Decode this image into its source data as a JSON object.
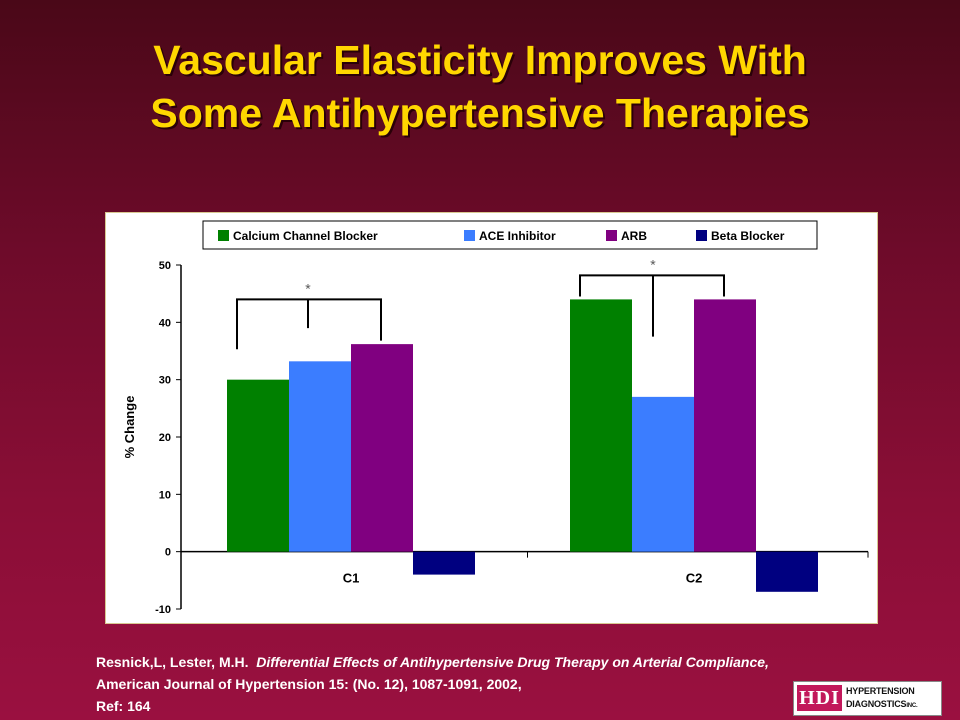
{
  "slide": {
    "title_line1": "Vascular Elasticity Improves With",
    "title_line2": "Some Antihypertensive Therapies"
  },
  "chart_data": {
    "type": "bar",
    "categories": [
      "C1",
      "C2"
    ],
    "series": [
      {
        "name": "Calcium Channel Blocker",
        "color": "#008000",
        "values": [
          30,
          44
        ]
      },
      {
        "name": "ACE Inhibitor",
        "color": "#3b7dff",
        "values": [
          33.2,
          27
        ]
      },
      {
        "name": "ARB",
        "color": "#800080",
        "values": [
          36.2,
          44
        ]
      },
      {
        "name": "Beta Blocker",
        "color": "#000080",
        "values": [
          -4,
          -7
        ]
      }
    ],
    "ylabel": "% Change",
    "ylim": [
      -10,
      50
    ],
    "yticks": [
      50,
      40,
      30,
      20,
      10,
      0,
      -10
    ],
    "legend_position": "top",
    "grid": false,
    "annotations": [
      {
        "category": "C1",
        "text": "*",
        "description": "significance bracket"
      },
      {
        "category": "C2",
        "text": "*",
        "description": "significance bracket"
      }
    ]
  },
  "citation": {
    "authors": "Resnick,L, Lester, M.H.",
    "title": "Differential Effects of Antihypertensive Drug Therapy on Arterial Compliance,",
    "journal": "American Journal of Hypertension 15: (No. 12), 1087-1091, 2002,",
    "ref": "Ref: 164"
  },
  "logo": {
    "mark": "HDI",
    "line1": "HYPERTENSION",
    "line2": "DIAGNOSTICS",
    "suffix": "INC."
  }
}
